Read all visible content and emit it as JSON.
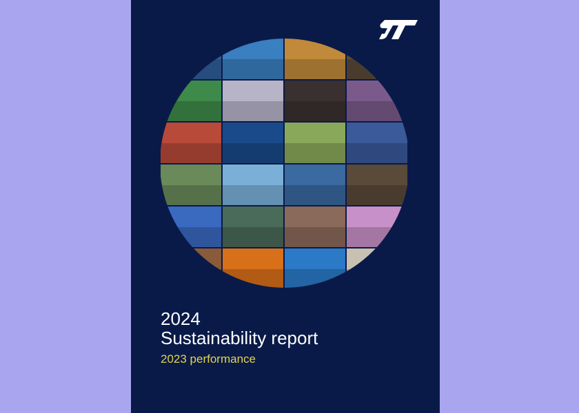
{
  "header": {
    "year": "2024",
    "title": "Sustainability report",
    "subtitle": "2023 performance"
  }
}
